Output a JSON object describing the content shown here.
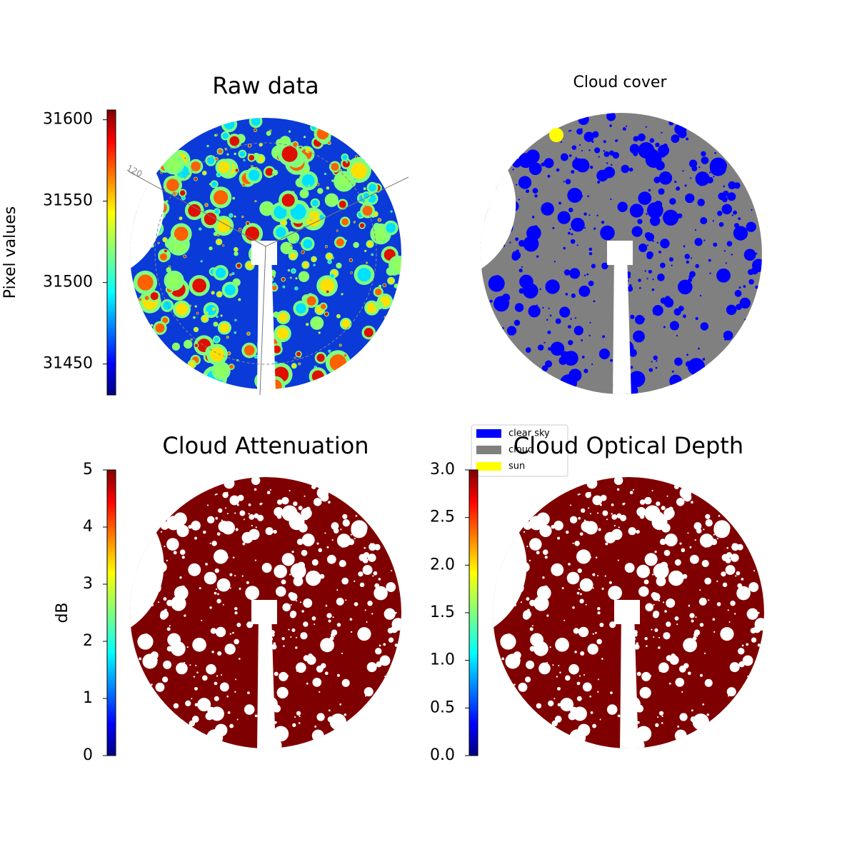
{
  "chart_data": [
    {
      "type": "image",
      "title": "Raw data",
      "annotations": [
        "120"
      ],
      "colorbar": {
        "label": "Pixel values",
        "lim": [
          31431,
          31606
        ],
        "ticks": [
          31450,
          31500,
          31550,
          31600
        ],
        "colormap": "jet"
      }
    },
    {
      "type": "image",
      "title": "Cloud cover",
      "series": [
        {
          "name": "clear sky",
          "color": "#0000ff"
        },
        {
          "name": "cloud",
          "color": "#808080"
        },
        {
          "name": "sun",
          "color": "#ffff00"
        }
      ]
    },
    {
      "type": "image",
      "title": "Cloud Attenuation",
      "colorbar": {
        "label": "dB",
        "lim": [
          0,
          5
        ],
        "ticks": [
          0,
          1,
          2,
          3,
          4,
          5
        ],
        "colormap": "jet"
      }
    },
    {
      "type": "image",
      "title": "Cloud Optical Depth",
      "colorbar": {
        "lim": [
          0,
          3
        ],
        "ticks": [
          {
            "value": 0,
            "label": "0.0"
          },
          0.5,
          {
            "value": 1,
            "label": "1.0"
          },
          1.5,
          {
            "value": 2,
            "label": "2.0"
          },
          2.5,
          {
            "value": 3,
            "label": "3.0"
          }
        ],
        "colormap": "jet"
      }
    }
  ]
}
